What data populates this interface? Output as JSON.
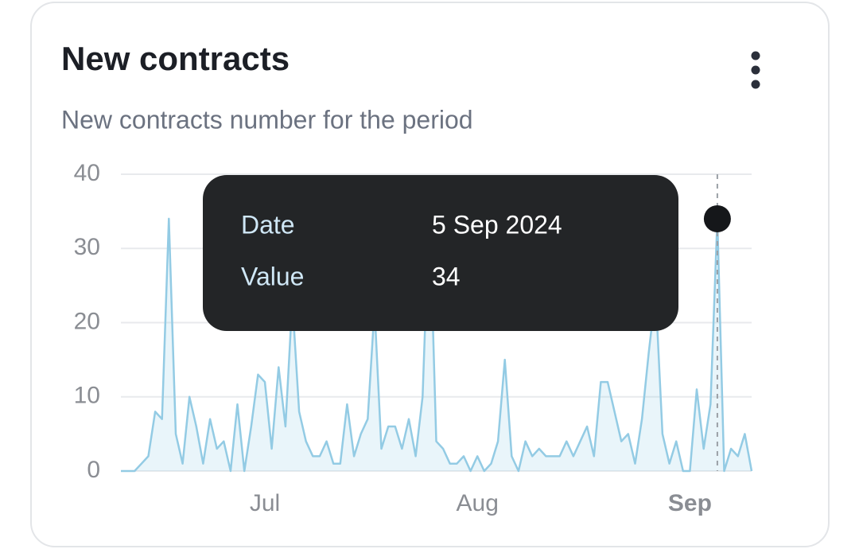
{
  "chart_data": {
    "type": "line",
    "title": "New contracts",
    "subtitle": "New contracts number for the period",
    "categories": [
      null,
      null,
      null,
      null,
      null,
      null,
      null,
      null,
      null,
      null,
      null,
      null,
      null,
      null,
      null,
      null,
      null,
      null,
      null,
      null,
      null,
      "Jul",
      null,
      null,
      null,
      null,
      null,
      null,
      null,
      null,
      null,
      null,
      null,
      null,
      null,
      null,
      null,
      null,
      null,
      null,
      null,
      null,
      null,
      null,
      null,
      null,
      null,
      null,
      null,
      null,
      null,
      null,
      "Aug",
      null,
      null,
      null,
      null,
      null,
      null,
      null,
      null,
      null,
      null,
      null,
      null,
      null,
      null,
      null,
      null,
      null,
      null,
      null,
      null,
      null,
      null,
      null,
      null,
      null,
      null,
      null,
      null,
      null,
      null,
      "Sep",
      null,
      null,
      null,
      null,
      null,
      null,
      null,
      null,
      null
    ],
    "series": [
      {
        "name": "New contracts",
        "color": "#93cbe4",
        "values": [
          0,
          0,
          0,
          1,
          2,
          8,
          7,
          34,
          5,
          1,
          10,
          6,
          1,
          7,
          3,
          4,
          0,
          9,
          0,
          6,
          13,
          12,
          3,
          14,
          6,
          23,
          8,
          4,
          2,
          2,
          4,
          1,
          1,
          9,
          2,
          5,
          7,
          22,
          3,
          6,
          6,
          3,
          7,
          2,
          10,
          36,
          4,
          3,
          1,
          1,
          2,
          0,
          2,
          0,
          1,
          4,
          15,
          2,
          0,
          4,
          2,
          3,
          2,
          2,
          2,
          4,
          2,
          4,
          6,
          2,
          12,
          12,
          8,
          4,
          5,
          1,
          7,
          16,
          24,
          5,
          1,
          4,
          0,
          0,
          11,
          3,
          9,
          34,
          0,
          3,
          2,
          5,
          0
        ]
      }
    ],
    "ylim": [
      0,
      40
    ],
    "yticks": [
      0,
      10,
      20,
      30,
      40
    ],
    "grid": true,
    "tooltip": {
      "labels": [
        "Date",
        "Value"
      ],
      "date": "5 Sep 2024",
      "value": 34
    }
  }
}
